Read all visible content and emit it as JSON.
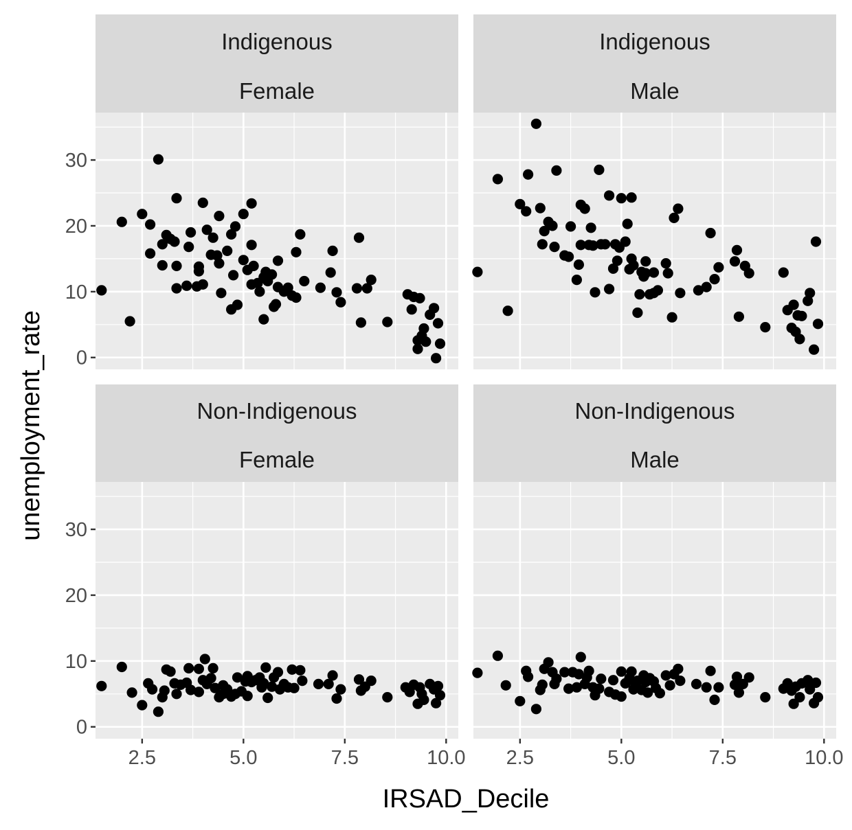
{
  "chart_data": {
    "type": "scatter",
    "xlabel": "IRSAD_Decile",
    "ylabel": "unemployment_rate",
    "xlim": [
      1.35,
      10.3
    ],
    "ylim": [
      -1.8,
      37.2
    ],
    "x_ticks": [
      "2.5",
      "5.0",
      "7.5",
      "10.0"
    ],
    "x_tick_values": [
      2.5,
      5.0,
      7.5,
      10.0
    ],
    "y_ticks": [
      "0",
      "10",
      "20",
      "30"
    ],
    "y_tick_values": [
      0,
      10,
      20,
      30
    ],
    "grid": true,
    "point_color": "#000000",
    "facets": [
      {
        "row": "Indigenous",
        "col": "Female",
        "points": [
          [
            1.5,
            10.2
          ],
          [
            2.0,
            20.6
          ],
          [
            2.2,
            5.5
          ],
          [
            2.5,
            21.8
          ],
          [
            2.7,
            15.8
          ],
          [
            2.7,
            20.2
          ],
          [
            2.9,
            30.1
          ],
          [
            3.0,
            17.2
          ],
          [
            3.0,
            14.0
          ],
          [
            3.1,
            18.6
          ],
          [
            3.2,
            18.0
          ],
          [
            3.3,
            17.6
          ],
          [
            3.35,
            24.2
          ],
          [
            3.35,
            13.9
          ],
          [
            3.35,
            10.5
          ],
          [
            3.6,
            10.9
          ],
          [
            3.65,
            16.8
          ],
          [
            3.7,
            19.0
          ],
          [
            3.85,
            10.8
          ],
          [
            3.9,
            13.1
          ],
          [
            3.9,
            13.8
          ],
          [
            4.0,
            23.5
          ],
          [
            4.0,
            11.1
          ],
          [
            4.1,
            19.4
          ],
          [
            4.2,
            15.6
          ],
          [
            4.25,
            18.2
          ],
          [
            4.35,
            15.5
          ],
          [
            4.4,
            14.3
          ],
          [
            4.4,
            21.5
          ],
          [
            4.45,
            9.8
          ],
          [
            4.6,
            16.2
          ],
          [
            4.7,
            18.7
          ],
          [
            4.7,
            7.3
          ],
          [
            4.75,
            12.5
          ],
          [
            4.8,
            19.9
          ],
          [
            4.85,
            8.0
          ],
          [
            5.0,
            21.8
          ],
          [
            5.0,
            14.8
          ],
          [
            5.1,
            13.3
          ],
          [
            5.2,
            23.4
          ],
          [
            5.2,
            17.1
          ],
          [
            5.2,
            11.1
          ],
          [
            5.25,
            13.9
          ],
          [
            5.35,
            11.3
          ],
          [
            5.4,
            10.0
          ],
          [
            5.5,
            12.2
          ],
          [
            5.5,
            5.8
          ],
          [
            5.55,
            13.0
          ],
          [
            5.6,
            11.6
          ],
          [
            5.7,
            12.6
          ],
          [
            5.75,
            7.7
          ],
          [
            5.8,
            8.1
          ],
          [
            5.85,
            14.7
          ],
          [
            5.85,
            10.7
          ],
          [
            6.0,
            10.0
          ],
          [
            6.1,
            10.6
          ],
          [
            6.2,
            9.4
          ],
          [
            6.3,
            9.1
          ],
          [
            6.3,
            16.0
          ],
          [
            6.4,
            18.7
          ],
          [
            6.5,
            11.6
          ],
          [
            6.9,
            10.6
          ],
          [
            7.15,
            12.9
          ],
          [
            7.2,
            16.2
          ],
          [
            7.3,
            9.9
          ],
          [
            7.4,
            8.4
          ],
          [
            7.8,
            10.5
          ],
          [
            7.85,
            18.2
          ],
          [
            7.9,
            5.3
          ],
          [
            8.05,
            10.5
          ],
          [
            8.15,
            11.8
          ],
          [
            8.55,
            5.4
          ],
          [
            9.05,
            9.6
          ],
          [
            9.15,
            7.3
          ],
          [
            9.2,
            9.2
          ],
          [
            9.3,
            2.6
          ],
          [
            9.3,
            1.3
          ],
          [
            9.35,
            9.0
          ],
          [
            9.4,
            3.3
          ],
          [
            9.45,
            4.4
          ],
          [
            9.5,
            2.4
          ],
          [
            9.6,
            6.5
          ],
          [
            9.7,
            7.5
          ],
          [
            9.75,
            -0.1
          ],
          [
            9.8,
            5.2
          ],
          [
            9.85,
            2.1
          ]
        ]
      },
      {
        "row": "Indigenous",
        "col": "Male",
        "points": [
          [
            1.45,
            13.0
          ],
          [
            1.95,
            27.1
          ],
          [
            2.2,
            7.1
          ],
          [
            2.5,
            23.3
          ],
          [
            2.65,
            22.2
          ],
          [
            2.7,
            27.8
          ],
          [
            2.9,
            35.5
          ],
          [
            3.0,
            22.7
          ],
          [
            3.05,
            17.2
          ],
          [
            3.1,
            19.2
          ],
          [
            3.2,
            20.6
          ],
          [
            3.3,
            20.0
          ],
          [
            3.35,
            16.8
          ],
          [
            3.4,
            28.4
          ],
          [
            3.6,
            15.5
          ],
          [
            3.7,
            15.3
          ],
          [
            3.75,
            19.9
          ],
          [
            3.9,
            11.8
          ],
          [
            3.95,
            14.1
          ],
          [
            4.0,
            23.2
          ],
          [
            4.0,
            17.1
          ],
          [
            4.1,
            22.6
          ],
          [
            4.2,
            17.1
          ],
          [
            4.25,
            19.7
          ],
          [
            4.3,
            17.0
          ],
          [
            4.35,
            9.9
          ],
          [
            4.45,
            28.5
          ],
          [
            4.5,
            17.2
          ],
          [
            4.6,
            17.2
          ],
          [
            4.7,
            24.6
          ],
          [
            4.7,
            10.4
          ],
          [
            4.8,
            13.5
          ],
          [
            4.85,
            17.2
          ],
          [
            4.9,
            14.7
          ],
          [
            4.95,
            16.7
          ],
          [
            5.0,
            24.2
          ],
          [
            5.1,
            17.6
          ],
          [
            5.15,
            20.3
          ],
          [
            5.2,
            13.4
          ],
          [
            5.25,
            24.3
          ],
          [
            5.25,
            15.0
          ],
          [
            5.3,
            14.0
          ],
          [
            5.4,
            6.8
          ],
          [
            5.45,
            9.6
          ],
          [
            5.5,
            13.0
          ],
          [
            5.55,
            12.3
          ],
          [
            5.6,
            14.6
          ],
          [
            5.6,
            12.8
          ],
          [
            5.7,
            9.6
          ],
          [
            5.8,
            12.9
          ],
          [
            5.8,
            9.8
          ],
          [
            5.9,
            10.2
          ],
          [
            6.1,
            14.3
          ],
          [
            6.15,
            12.8
          ],
          [
            6.25,
            6.1
          ],
          [
            6.3,
            21.2
          ],
          [
            6.4,
            22.6
          ],
          [
            6.45,
            9.8
          ],
          [
            6.9,
            10.2
          ],
          [
            7.1,
            10.7
          ],
          [
            7.2,
            18.9
          ],
          [
            7.3,
            11.9
          ],
          [
            7.4,
            13.7
          ],
          [
            7.8,
            14.6
          ],
          [
            7.85,
            16.3
          ],
          [
            7.9,
            6.2
          ],
          [
            8.05,
            13.9
          ],
          [
            8.15,
            12.8
          ],
          [
            8.55,
            4.6
          ],
          [
            9.0,
            12.9
          ],
          [
            9.1,
            7.2
          ],
          [
            9.2,
            4.5
          ],
          [
            9.25,
            8.0
          ],
          [
            9.3,
            3.9
          ],
          [
            9.35,
            6.4
          ],
          [
            9.4,
            2.8
          ],
          [
            9.45,
            6.3
          ],
          [
            9.6,
            8.6
          ],
          [
            9.65,
            9.8
          ],
          [
            9.75,
            1.2
          ],
          [
            9.8,
            17.6
          ],
          [
            9.85,
            5.1
          ]
        ]
      },
      {
        "row": "Non-Indigenous",
        "col": "Female",
        "points": [
          [
            1.5,
            6.2
          ],
          [
            2.0,
            9.1
          ],
          [
            2.25,
            5.2
          ],
          [
            2.5,
            3.3
          ],
          [
            2.65,
            6.6
          ],
          [
            2.75,
            5.7
          ],
          [
            2.9,
            2.3
          ],
          [
            3.0,
            4.5
          ],
          [
            3.05,
            5.5
          ],
          [
            3.1,
            8.7
          ],
          [
            3.2,
            8.4
          ],
          [
            3.3,
            6.6
          ],
          [
            3.35,
            5.0
          ],
          [
            3.45,
            6.4
          ],
          [
            3.6,
            6.7
          ],
          [
            3.65,
            8.9
          ],
          [
            3.7,
            5.6
          ],
          [
            3.9,
            8.8
          ],
          [
            3.9,
            5.3
          ],
          [
            4.0,
            7.1
          ],
          [
            4.05,
            10.3
          ],
          [
            4.1,
            6.5
          ],
          [
            4.2,
            7.4
          ],
          [
            4.25,
            8.9
          ],
          [
            4.3,
            5.9
          ],
          [
            4.4,
            4.5
          ],
          [
            4.5,
            6.3
          ],
          [
            4.5,
            5.0
          ],
          [
            4.6,
            5.7
          ],
          [
            4.7,
            4.6
          ],
          [
            4.8,
            5.0
          ],
          [
            4.85,
            7.5
          ],
          [
            4.95,
            5.4
          ],
          [
            5.05,
            6.9
          ],
          [
            5.1,
            7.7
          ],
          [
            5.1,
            4.7
          ],
          [
            5.2,
            6.8
          ],
          [
            5.3,
            7.1
          ],
          [
            5.4,
            7.5
          ],
          [
            5.45,
            6.0
          ],
          [
            5.5,
            6.6
          ],
          [
            5.55,
            9.0
          ],
          [
            5.6,
            4.4
          ],
          [
            5.7,
            6.1
          ],
          [
            5.75,
            7.5
          ],
          [
            5.85,
            8.3
          ],
          [
            5.9,
            5.7
          ],
          [
            6.0,
            6.5
          ],
          [
            6.1,
            6.0
          ],
          [
            6.2,
            8.7
          ],
          [
            6.25,
            5.9
          ],
          [
            6.4,
            8.6
          ],
          [
            6.45,
            7.0
          ],
          [
            6.85,
            6.5
          ],
          [
            7.1,
            6.5
          ],
          [
            7.2,
            7.8
          ],
          [
            7.3,
            4.3
          ],
          [
            7.4,
            5.7
          ],
          [
            7.85,
            7.2
          ],
          [
            7.9,
            5.5
          ],
          [
            8.0,
            6.1
          ],
          [
            8.15,
            7.0
          ],
          [
            8.55,
            4.5
          ],
          [
            9.0,
            6.0
          ],
          [
            9.1,
            5.3
          ],
          [
            9.2,
            6.4
          ],
          [
            9.3,
            3.5
          ],
          [
            9.35,
            6.0
          ],
          [
            9.4,
            5.0
          ],
          [
            9.45,
            4.1
          ],
          [
            9.6,
            6.5
          ],
          [
            9.7,
            5.7
          ],
          [
            9.75,
            3.6
          ],
          [
            9.8,
            6.2
          ],
          [
            9.85,
            4.8
          ]
        ]
      },
      {
        "row": "Non-Indigenous",
        "col": "Male",
        "points": [
          [
            1.45,
            8.2
          ],
          [
            1.95,
            10.8
          ],
          [
            2.15,
            6.3
          ],
          [
            2.5,
            3.9
          ],
          [
            2.65,
            8.5
          ],
          [
            2.7,
            7.6
          ],
          [
            2.9,
            2.7
          ],
          [
            3.0,
            5.6
          ],
          [
            3.05,
            6.4
          ],
          [
            3.1,
            8.8
          ],
          [
            3.2,
            9.8
          ],
          [
            3.3,
            8.3
          ],
          [
            3.35,
            6.5
          ],
          [
            3.4,
            7.3
          ],
          [
            3.6,
            8.3
          ],
          [
            3.7,
            5.8
          ],
          [
            3.8,
            8.3
          ],
          [
            3.9,
            6.0
          ],
          [
            3.95,
            8.0
          ],
          [
            4.0,
            10.6
          ],
          [
            4.1,
            6.5
          ],
          [
            4.15,
            7.5
          ],
          [
            4.2,
            8.5
          ],
          [
            4.3,
            6.0
          ],
          [
            4.35,
            4.8
          ],
          [
            4.45,
            5.8
          ],
          [
            4.5,
            7.3
          ],
          [
            4.7,
            5.3
          ],
          [
            4.8,
            7.1
          ],
          [
            4.85,
            4.9
          ],
          [
            5.0,
            8.4
          ],
          [
            5.0,
            4.6
          ],
          [
            5.1,
            6.6
          ],
          [
            5.2,
            7.4
          ],
          [
            5.25,
            8.4
          ],
          [
            5.3,
            5.7
          ],
          [
            5.35,
            6.5
          ],
          [
            5.4,
            7.0
          ],
          [
            5.5,
            5.6
          ],
          [
            5.55,
            7.8
          ],
          [
            5.6,
            6.8
          ],
          [
            5.65,
            5.2
          ],
          [
            5.7,
            7.4
          ],
          [
            5.8,
            6.9
          ],
          [
            5.85,
            5.9
          ],
          [
            5.95,
            5.1
          ],
          [
            6.1,
            7.8
          ],
          [
            6.2,
            6.3
          ],
          [
            6.3,
            8.0
          ],
          [
            6.4,
            8.8
          ],
          [
            6.45,
            7.0
          ],
          [
            6.85,
            6.5
          ],
          [
            7.1,
            6.0
          ],
          [
            7.2,
            8.5
          ],
          [
            7.3,
            4.1
          ],
          [
            7.4,
            6.0
          ],
          [
            7.8,
            6.4
          ],
          [
            7.85,
            7.6
          ],
          [
            7.9,
            5.2
          ],
          [
            8.0,
            6.5
          ],
          [
            8.15,
            7.5
          ],
          [
            8.55,
            4.5
          ],
          [
            9.0,
            5.8
          ],
          [
            9.1,
            6.6
          ],
          [
            9.2,
            5.5
          ],
          [
            9.25,
            3.5
          ],
          [
            9.3,
            6.1
          ],
          [
            9.4,
            4.5
          ],
          [
            9.45,
            6.6
          ],
          [
            9.6,
            7.1
          ],
          [
            9.65,
            5.7
          ],
          [
            9.75,
            3.6
          ],
          [
            9.8,
            6.7
          ],
          [
            9.85,
            4.5
          ]
        ]
      }
    ]
  }
}
